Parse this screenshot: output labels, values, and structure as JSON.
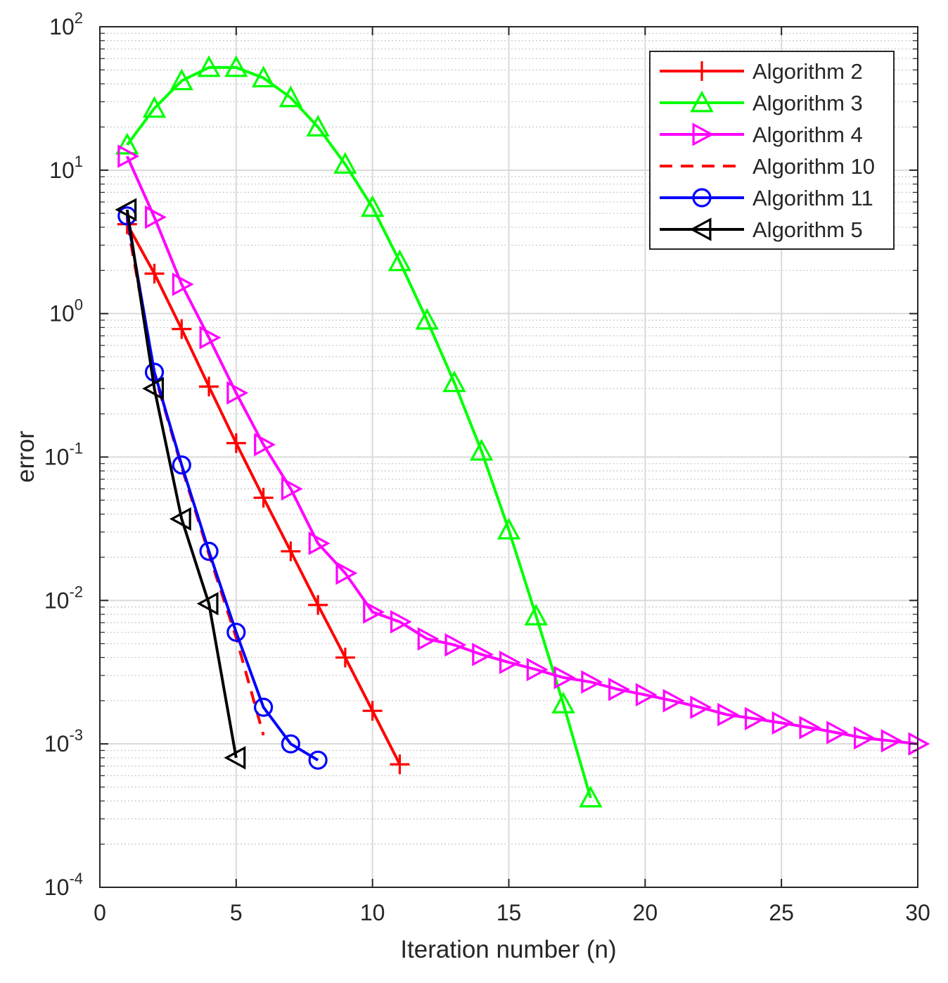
{
  "chart_data": {
    "type": "line",
    "title": "",
    "xlabel": "Iteration number (n)",
    "ylabel": "error",
    "xscale": "linear",
    "yscale": "log",
    "xlim": [
      0,
      30
    ],
    "ylim": [
      0.0001,
      100
    ],
    "xticks": [
      0,
      5,
      10,
      15,
      20,
      25,
      30
    ],
    "yticks": [
      {
        "value": 0.0001,
        "base": "10",
        "exp": "-4"
      },
      {
        "value": 0.001,
        "base": "10",
        "exp": "-3"
      },
      {
        "value": 0.01,
        "base": "10",
        "exp": "-2"
      },
      {
        "value": 0.1,
        "base": "10",
        "exp": "-1"
      },
      {
        "value": 1,
        "base": "10",
        "exp": "0"
      },
      {
        "value": 10,
        "base": "10",
        "exp": "1"
      },
      {
        "value": 100,
        "base": "10",
        "exp": "2"
      }
    ],
    "grid": true,
    "legend_position": "top-right",
    "series": [
      {
        "name": "Algorithm 2",
        "color": "#ff0000",
        "line": "solid",
        "marker": "plus",
        "x": [
          1,
          2,
          3,
          4,
          5,
          6,
          7,
          8,
          9,
          10,
          11
        ],
        "y": [
          4.2,
          1.9,
          0.78,
          0.31,
          0.125,
          0.052,
          0.022,
          0.0093,
          0.004,
          0.0017,
          0.00072
        ]
      },
      {
        "name": "Algorithm 3",
        "color": "#00ff00",
        "line": "solid",
        "marker": "triangle-up",
        "x": [
          1,
          2,
          3,
          4,
          5,
          6,
          7,
          8,
          9,
          10,
          11,
          12,
          13,
          14,
          15,
          16,
          17,
          18
        ],
        "y": [
          15,
          27,
          42,
          52,
          52,
          44,
          32,
          20,
          11,
          5.5,
          2.3,
          0.9,
          0.33,
          0.11,
          0.031,
          0.0078,
          0.0019,
          0.00042
        ]
      },
      {
        "name": "Algorithm 4",
        "color": "#ff00ff",
        "line": "solid",
        "marker": "triangle-right",
        "x": [
          1,
          2,
          3,
          4,
          5,
          6,
          7,
          8,
          9,
          10,
          11,
          12,
          13,
          14,
          15,
          16,
          17,
          18,
          19,
          20,
          21,
          22,
          23,
          24,
          25,
          26,
          27,
          28,
          29,
          30
        ],
        "y": [
          12.5,
          4.7,
          1.6,
          0.68,
          0.28,
          0.122,
          0.06,
          0.025,
          0.0155,
          0.0083,
          0.0071,
          0.0054,
          0.0049,
          0.0042,
          0.0037,
          0.0033,
          0.0029,
          0.0027,
          0.0024,
          0.0022,
          0.002,
          0.0018,
          0.0016,
          0.0015,
          0.0014,
          0.0013,
          0.0012,
          0.0011,
          0.00105,
          0.001
        ]
      },
      {
        "name": "Algorithm 10",
        "color": "#ff0000",
        "line": "dashed",
        "marker": "none",
        "x": [
          1,
          2,
          3,
          4,
          5,
          6
        ],
        "y": [
          4.3,
          0.38,
          0.085,
          0.021,
          0.0055,
          0.00115
        ]
      },
      {
        "name": "Algorithm 11",
        "color": "#0000ff",
        "line": "solid",
        "marker": "circle",
        "x": [
          1,
          2,
          3,
          4,
          5,
          6,
          7,
          8
        ],
        "y": [
          4.8,
          0.39,
          0.088,
          0.022,
          0.006,
          0.0018,
          0.001,
          0.00077
        ]
      },
      {
        "name": "Algorithm 5",
        "color": "#000000",
        "line": "solid",
        "marker": "triangle-left",
        "x": [
          1,
          2,
          3,
          4,
          5
        ],
        "y": [
          5.3,
          0.3,
          0.037,
          0.0095,
          0.0008
        ]
      }
    ]
  }
}
